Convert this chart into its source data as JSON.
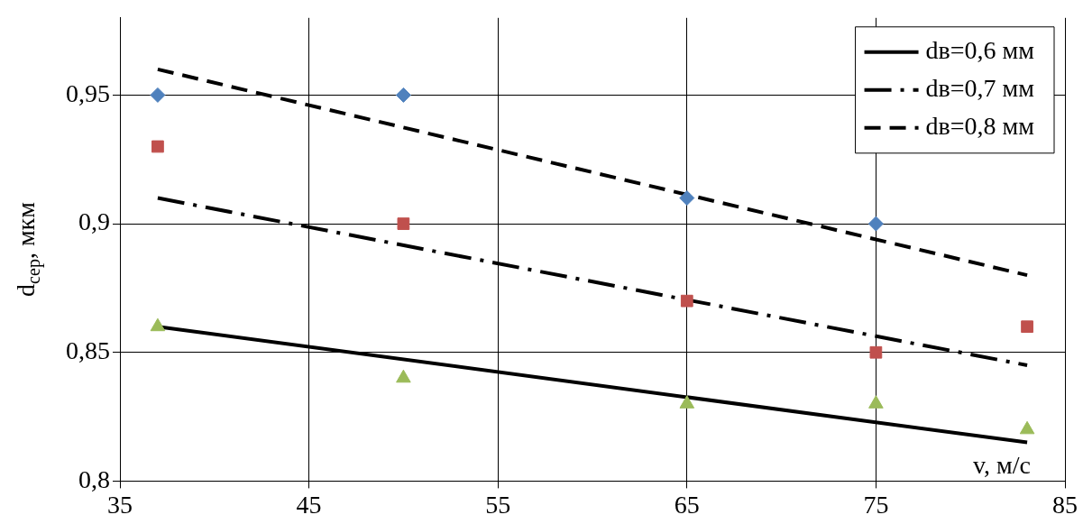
{
  "chart_data": {
    "type": "scatter",
    "xlabel": "v, м/с",
    "ylabel": "d$_{сер}$, мкм",
    "xlim": [
      35,
      85
    ],
    "xticks": [
      35,
      45,
      55,
      65,
      75,
      85
    ],
    "ylim": [
      0.8,
      0.98
    ],
    "yticks": [
      {
        "value": 0.8,
        "label": "0,8"
      },
      {
        "value": 0.85,
        "label": "0,85"
      },
      {
        "value": 0.9,
        "label": "0,9"
      },
      {
        "value": 0.95,
        "label": "0,95"
      }
    ],
    "grid": true,
    "legend": "top right",
    "series": [
      {
        "type": "scatter",
        "marker": "diamond",
        "color": "#4f81bd",
        "x": [
          37,
          50,
          65,
          75
        ],
        "values": [
          0.95,
          0.95,
          0.91,
          0.9
        ]
      },
      {
        "type": "scatter",
        "marker": "square",
        "color": "#c0504d",
        "x": [
          37,
          50,
          65,
          75,
          83
        ],
        "values": [
          0.93,
          0.9,
          0.87,
          0.85,
          0.86
        ]
      },
      {
        "type": "scatter",
        "marker": "triangle",
        "color": "#9bbb59",
        "x": [
          37,
          50,
          65,
          75,
          83
        ],
        "values": [
          0.86,
          0.84,
          0.83,
          0.83,
          0.82
        ]
      },
      {
        "type": "line",
        "name": "dв=0,6 мм",
        "line_style": "solid",
        "marker": "none",
        "color": "#000000",
        "x": [
          37,
          83
        ],
        "values": [
          0.86,
          0.815
        ]
      },
      {
        "type": "line",
        "name": "dв=0,7 мм",
        "line_style": "dashdot",
        "marker": "none",
        "color": "#000000",
        "x": [
          37,
          83
        ],
        "values": [
          0.91,
          0.845
        ]
      },
      {
        "type": "line",
        "name": "dв=0,8 мм",
        "line_style": "dashed",
        "marker": "none",
        "color": "#000000",
        "x": [
          37,
          83
        ],
        "values": [
          0.96,
          0.88
        ]
      }
    ]
  }
}
